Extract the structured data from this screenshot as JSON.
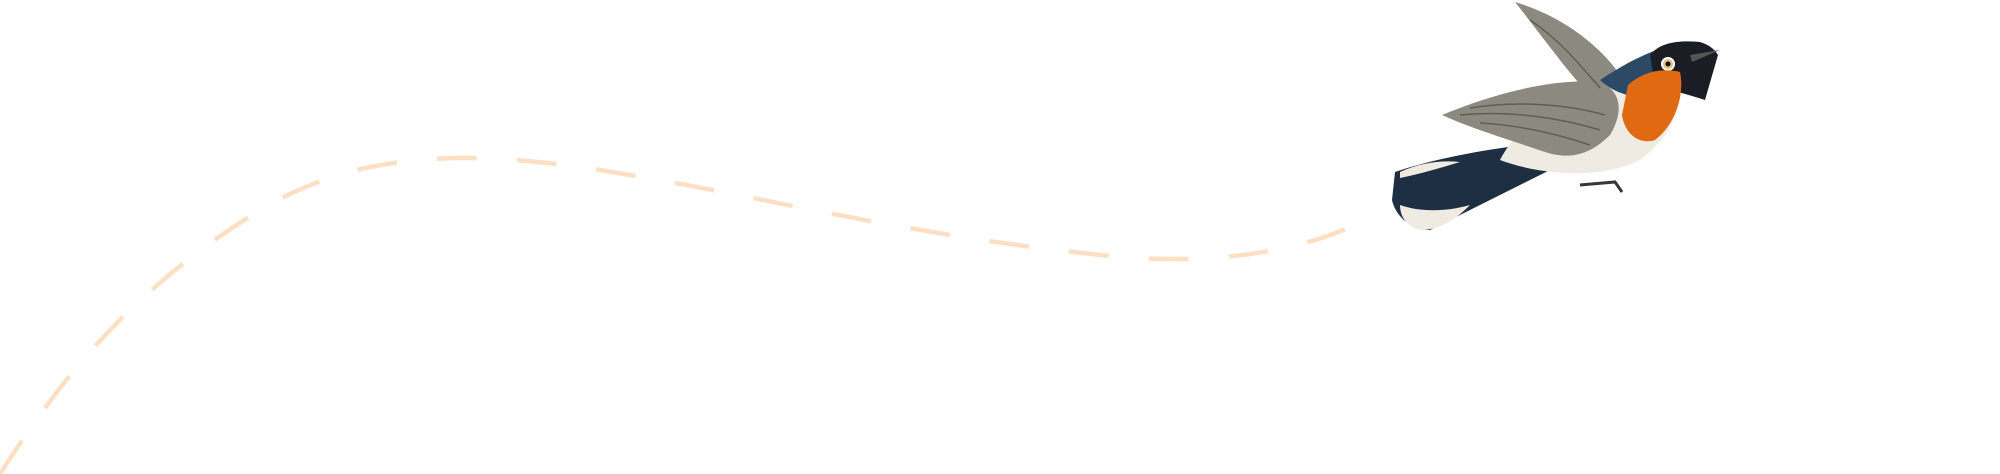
{
  "illustration": {
    "subject": "bird-icon",
    "path_style": "dashed",
    "colors": {
      "background": "#ffffff",
      "flight_path": "#fde0c4",
      "bird_back": "#2c4a66",
      "bird_head": "#1b1d24",
      "bird_throat": "#e06a12",
      "bird_belly": "#efebe2",
      "bird_wing": "#8c8a80",
      "bird_tail": "#1e2f44"
    }
  }
}
